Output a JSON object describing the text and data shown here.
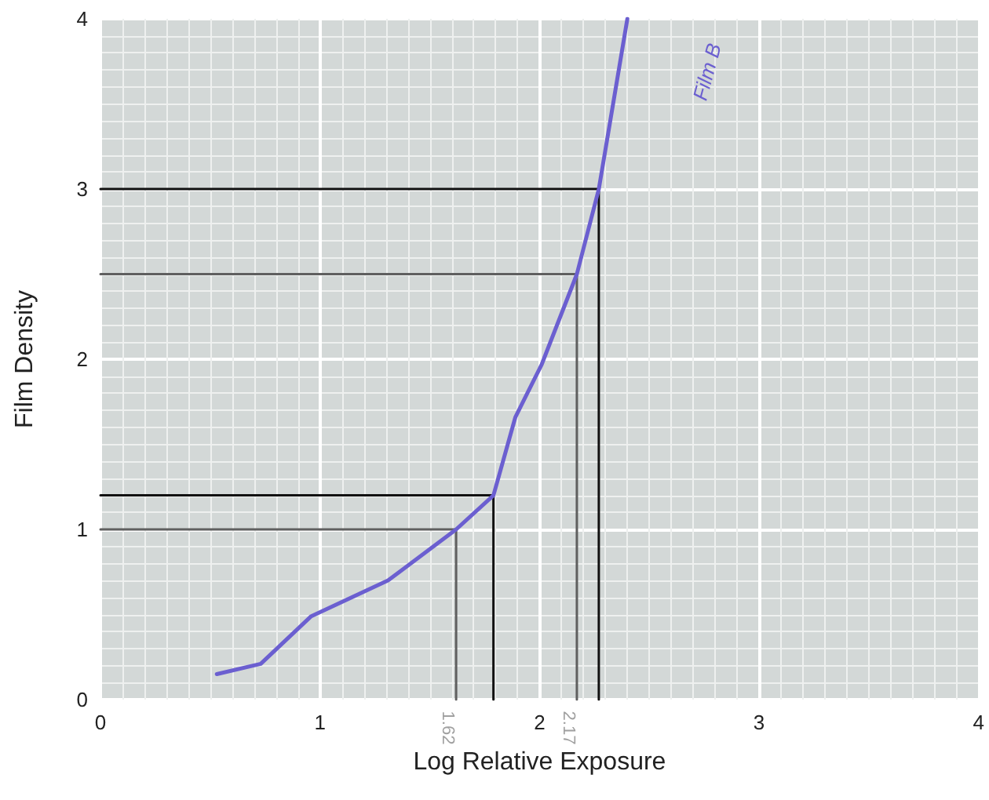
{
  "chart_data": {
    "type": "line",
    "xlabel": "Log Relative Exposure",
    "ylabel": "Film Density",
    "xlim": [
      0,
      4
    ],
    "ylim": [
      0,
      4
    ],
    "xticks": [
      0,
      1,
      2,
      3,
      4
    ],
    "yticks": [
      0,
      1,
      2,
      3,
      4
    ],
    "grid": true,
    "legend": false,
    "marker": "none",
    "series": [
      {
        "name": "Film B",
        "color": "#6b5fd0",
        "x": [
          0.53,
          0.73,
          0.96,
          1.31,
          1.62,
          1.79,
          1.89,
          2.01,
          2.17,
          2.27,
          2.4
        ],
        "values": [
          0.15,
          0.21,
          0.49,
          0.7,
          1.0,
          1.2,
          1.66,
          1.97,
          2.5,
          3.0,
          4.0
        ]
      },
      {
        "color": "#5f5f5f",
        "x": [
          0,
          1.62,
          1.62
        ],
        "values": [
          1,
          1,
          0
        ]
      },
      {
        "color": "#5f5f5f",
        "x": [
          0,
          2.17,
          2.17
        ],
        "values": [
          2.5,
          2.5,
          0
        ]
      },
      {
        "color": "#111111",
        "x": [
          0,
          1.79,
          1.79
        ],
        "values": [
          1.2,
          1.2,
          0
        ]
      },
      {
        "color": "#111111",
        "x": [
          0,
          2.27,
          2.27
        ],
        "values": [
          3,
          3,
          0
        ]
      }
    ],
    "annotations": [
      {
        "text": "1.62",
        "x": 1.62,
        "y": 0
      },
      {
        "text": "2.17",
        "x": 2.17,
        "y": 0
      }
    ]
  }
}
